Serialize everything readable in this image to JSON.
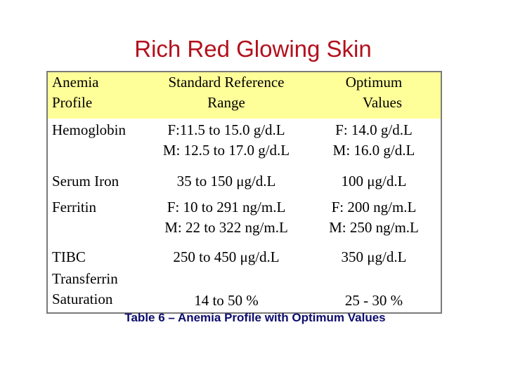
{
  "title": "Rich Red Glowing Skin",
  "table": {
    "headers": [
      [
        "Anemia",
        "Profile"
      ],
      [
        "Standard Reference",
        "Range"
      ],
      [
        "Optimum",
        "Values"
      ]
    ],
    "rows": [
      {
        "name": [
          "Hemoglobin"
        ],
        "range": [
          "F:11.5  to 15.0 g/d.L",
          "M: 12.5  to 17.0 g/d.L"
        ],
        "optimum": [
          "F: 14.0 g/d.L",
          "M: 16.0 g/d.L"
        ]
      },
      {
        "name": [
          "Serum Iron"
        ],
        "range": [
          "35 to 150 μg/d.L"
        ],
        "optimum": [
          "100 μg/d.L"
        ]
      },
      {
        "name": [
          "Ferritin"
        ],
        "range": [
          "F: 10 to 291 ng/m.L",
          "M: 22 to 322 ng/m.L"
        ],
        "optimum": [
          "F: 200 ng/m.L",
          "M: 250 ng/m.L"
        ]
      },
      {
        "name": [
          "TIBC"
        ],
        "range": [
          "250 to 450 μg/d.L"
        ],
        "optimum": [
          "350 μg/d.L"
        ]
      },
      {
        "name": [
          "Transferrin",
          "Saturation"
        ],
        "range": [
          "14 to 50 %"
        ],
        "optimum": [
          "25 - 30 %"
        ]
      }
    ],
    "header_bg": "#ffff99"
  },
  "caption": "Table 6 – Anemia Profile with Optimum Values",
  "colors": {
    "title": "#b3101c",
    "caption": "#0c0c6e",
    "border": "#7a7a7a"
  }
}
